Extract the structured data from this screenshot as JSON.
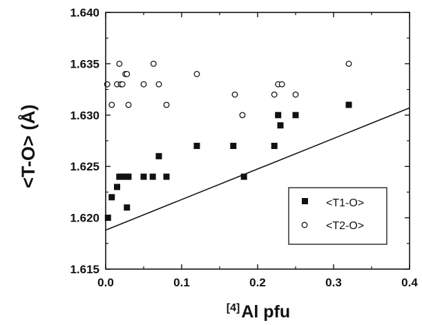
{
  "chart_data": {
    "type": "scatter",
    "title": "",
    "xlabel": {
      "superscript": "[4]",
      "text": "Al pfu"
    },
    "ylabel": "<T-O> (Å)",
    "xlim": [
      0.0,
      0.4
    ],
    "ylim": [
      1.615,
      1.64
    ],
    "x_ticks": [
      "0.0",
      "0.1",
      "0.2",
      "0.3",
      "0.4"
    ],
    "y_ticks": [
      "1.615",
      "1.620",
      "1.625",
      "1.630",
      "1.635",
      "1.640"
    ],
    "grid": false,
    "legend_position": "bottom-right",
    "series": [
      {
        "name": "<T1-O>",
        "marker": "filled-square",
        "color": "#111111",
        "points": [
          [
            0.003,
            1.62
          ],
          [
            0.008,
            1.622
          ],
          [
            0.015,
            1.623
          ],
          [
            0.018,
            1.624
          ],
          [
            0.022,
            1.624
          ],
          [
            0.028,
            1.624
          ],
          [
            0.03,
            1.624
          ],
          [
            0.028,
            1.621
          ],
          [
            0.05,
            1.624
          ],
          [
            0.062,
            1.624
          ],
          [
            0.07,
            1.626
          ],
          [
            0.08,
            1.624
          ],
          [
            0.12,
            1.627
          ],
          [
            0.168,
            1.627
          ],
          [
            0.182,
            1.624
          ],
          [
            0.222,
            1.627
          ],
          [
            0.227,
            1.63
          ],
          [
            0.23,
            1.629
          ],
          [
            0.25,
            1.63
          ],
          [
            0.32,
            1.631
          ]
        ]
      },
      {
        "name": "<T2-O>",
        "marker": "open-circle",
        "color": "#111111",
        "points": [
          [
            0.002,
            1.633
          ],
          [
            0.008,
            1.631
          ],
          [
            0.015,
            1.633
          ],
          [
            0.018,
            1.635
          ],
          [
            0.02,
            1.633
          ],
          [
            0.022,
            1.633
          ],
          [
            0.026,
            1.634
          ],
          [
            0.028,
            1.634
          ],
          [
            0.03,
            1.631
          ],
          [
            0.05,
            1.633
          ],
          [
            0.063,
            1.635
          ],
          [
            0.07,
            1.633
          ],
          [
            0.08,
            1.631
          ],
          [
            0.12,
            1.634
          ],
          [
            0.17,
            1.632
          ],
          [
            0.18,
            1.63
          ],
          [
            0.222,
            1.632
          ],
          [
            0.227,
            1.633
          ],
          [
            0.232,
            1.633
          ],
          [
            0.25,
            1.632
          ],
          [
            0.32,
            1.635
          ]
        ]
      }
    ],
    "lines": [
      {
        "style": "solid",
        "color": "#111111",
        "points": [
          [
            0.0,
            1.6188
          ],
          [
            0.4,
            1.6307
          ]
        ]
      }
    ]
  }
}
